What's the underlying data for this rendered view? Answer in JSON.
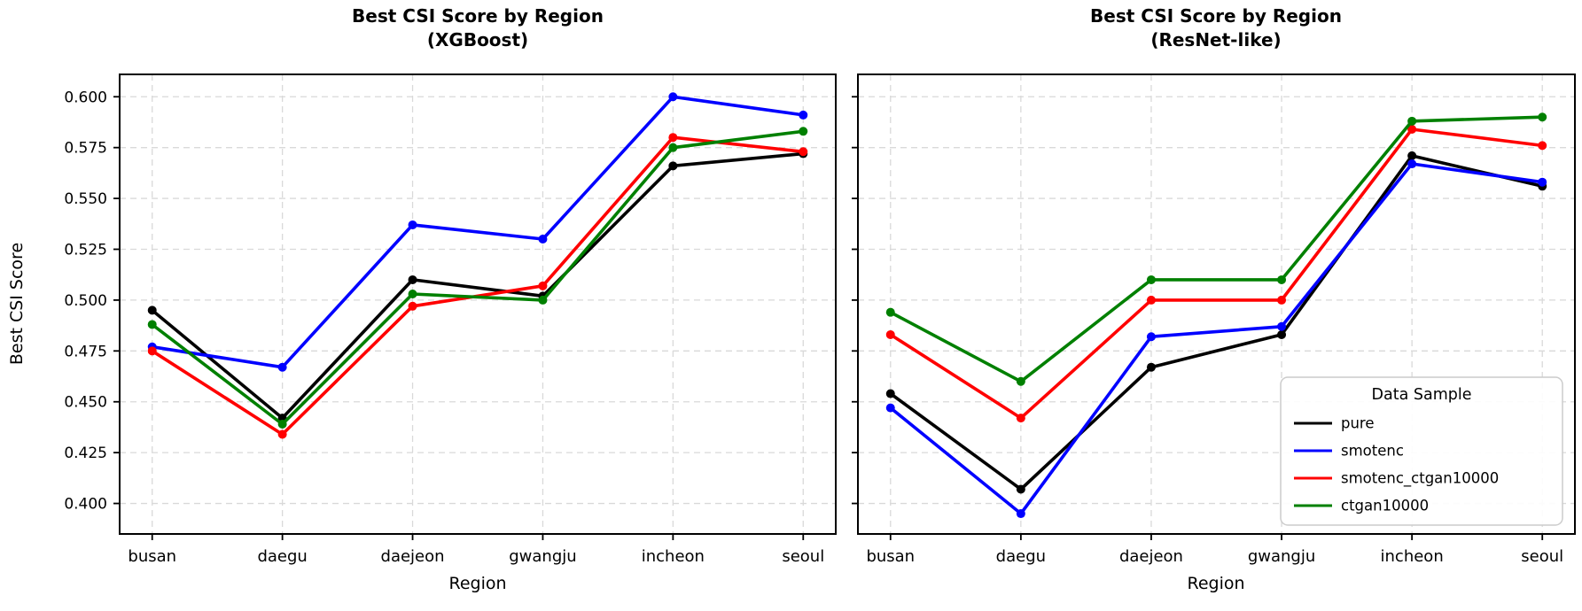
{
  "figure": {
    "background": "#ffffff"
  },
  "style": {
    "spine_color": "#000000",
    "grid_color": "#d9d9d9",
    "text_color": "#000000",
    "legend_border_color": "#cccccc",
    "legend_bg_color": "#ffffff"
  },
  "chart_data": [
    {
      "type": "line",
      "title_line1": "Best CSI Score by Region",
      "title_line2": "(XGBoost)",
      "xlabel": "Region",
      "ylabel": "Best CSI Score",
      "categories": [
        "busan",
        "daegu",
        "daejeon",
        "gwangju",
        "incheon",
        "seoul"
      ],
      "series": [
        {
          "name": "pure",
          "color": "#000000",
          "values": [
            0.495,
            0.442,
            0.51,
            0.502,
            0.566,
            0.572
          ]
        },
        {
          "name": "smotenc",
          "color": "#0000ff",
          "values": [
            0.477,
            0.467,
            0.537,
            0.53,
            0.6,
            0.591
          ]
        },
        {
          "name": "smotenc_ctgan10000",
          "color": "#ff0000",
          "values": [
            0.475,
            0.434,
            0.497,
            0.507,
            0.58,
            0.573
          ]
        },
        {
          "name": "ctgan10000",
          "color": "#008000",
          "values": [
            0.488,
            0.439,
            0.503,
            0.5,
            0.575,
            0.583
          ]
        }
      ],
      "ylim": [
        0.385,
        0.611
      ],
      "yticks": [
        "0.400",
        "0.425",
        "0.450",
        "0.475",
        "0.500",
        "0.525",
        "0.550",
        "0.575",
        "0.600"
      ],
      "show_ytick_labels": true,
      "grid": true,
      "legend": null
    },
    {
      "type": "line",
      "title_line1": "Best CSI Score by Region",
      "title_line2": "(ResNet-like)",
      "xlabel": "Region",
      "ylabel": "",
      "categories": [
        "busan",
        "daegu",
        "daejeon",
        "gwangju",
        "incheon",
        "seoul"
      ],
      "series": [
        {
          "name": "pure",
          "color": "#000000",
          "values": [
            0.454,
            0.407,
            0.467,
            0.483,
            0.571,
            0.556
          ]
        },
        {
          "name": "smotenc",
          "color": "#0000ff",
          "values": [
            0.447,
            0.395,
            0.482,
            0.487,
            0.567,
            0.558
          ]
        },
        {
          "name": "smotenc_ctgan10000",
          "color": "#ff0000",
          "values": [
            0.483,
            0.442,
            0.5,
            0.5,
            0.584,
            0.576
          ]
        },
        {
          "name": "ctgan10000",
          "color": "#008000",
          "values": [
            0.494,
            0.46,
            0.51,
            0.51,
            0.588,
            0.59
          ]
        }
      ],
      "ylim": [
        0.385,
        0.611
      ],
      "yticks": [
        "0.400",
        "0.425",
        "0.450",
        "0.475",
        "0.500",
        "0.525",
        "0.550",
        "0.575",
        "0.600"
      ],
      "show_ytick_labels": false,
      "grid": true,
      "legend": {
        "title": "Data Sample",
        "entries": [
          "pure",
          "smotenc",
          "smotenc_ctgan10000",
          "ctgan10000"
        ],
        "position": "lower right"
      }
    }
  ]
}
